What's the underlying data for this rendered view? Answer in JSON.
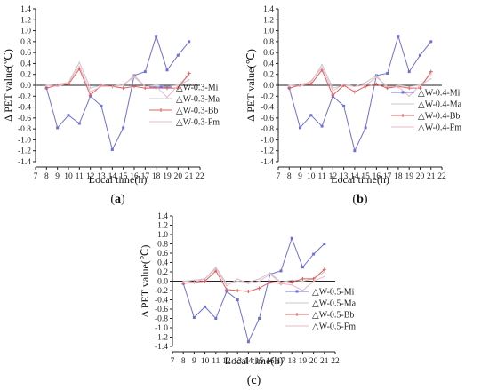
{
  "figure": {
    "panels": [
      "a",
      "b",
      "c"
    ]
  },
  "chart_data": [
    {
      "panel": "(a)",
      "panel_letter": "a",
      "type": "line",
      "xlabel": "Local time(h)",
      "ylabel": "Δ PET value(℃)",
      "xlim": [
        7,
        22
      ],
      "ylim": [
        -1.4,
        1.4
      ],
      "xticks": [
        "7",
        "8",
        "9",
        "10",
        "11",
        "12",
        "13",
        "14",
        "15",
        "16",
        "17",
        "18",
        "19",
        "20",
        "21",
        "22"
      ],
      "yticks": [
        "1.4",
        "1.2",
        "1.0",
        "0.8",
        "0.6",
        "0.4",
        "0.2",
        "0.0",
        "-0.2",
        "-0.4",
        "-0.6",
        "-0.8",
        "-1.0",
        "-1.2",
        "-1.4"
      ],
      "legend_position": "right",
      "series": [
        {
          "name": "△W-0.3-Mi",
          "color": "#6f6fd6",
          "marker": "square",
          "x": [
            8,
            9,
            10,
            11,
            12,
            13,
            14,
            15,
            16,
            17,
            18,
            19,
            20,
            21
          ],
          "values": [
            -0.05,
            -0.78,
            -0.55,
            -0.7,
            -0.2,
            -0.38,
            -1.18,
            -0.78,
            0.18,
            0.25,
            0.9,
            0.28,
            0.55,
            0.8
          ]
        },
        {
          "name": "△W-0.3-Ma",
          "color": "#c8c8c8",
          "marker": "none",
          "x": [
            8,
            9,
            10,
            11,
            12,
            13,
            14,
            15,
            16,
            17,
            18,
            19,
            20,
            21
          ],
          "values": [
            0.0,
            0.02,
            0.05,
            0.42,
            -0.05,
            0.0,
            -0.02,
            0.02,
            0.15,
            -0.02,
            0.0,
            -0.02,
            0.0,
            0.18
          ]
        },
        {
          "name": "△W-0.3-Bb",
          "color": "#e06060",
          "marker": "cross",
          "x": [
            8,
            9,
            10,
            11,
            12,
            13,
            14,
            15,
            16,
            17,
            18,
            19,
            20,
            21
          ],
          "values": [
            -0.05,
            0.0,
            0.02,
            0.3,
            -0.18,
            0.0,
            -0.02,
            -0.05,
            -0.02,
            -0.05,
            -0.05,
            -0.05,
            -0.05,
            0.22
          ]
        },
        {
          "name": "△W-0.3-Fm",
          "color": "#e8b8c8",
          "marker": "none",
          "x": [
            8,
            9,
            10,
            11,
            12,
            13,
            14,
            15,
            16,
            17,
            18,
            19,
            20,
            21
          ],
          "values": [
            0.0,
            -0.02,
            0.05,
            0.35,
            -0.12,
            -0.02,
            -0.02,
            0.0,
            0.18,
            -0.02,
            -0.02,
            -0.22,
            0.0,
            0.1
          ]
        }
      ]
    },
    {
      "panel": "(b)",
      "panel_letter": "b",
      "type": "line",
      "xlabel": "Local time(h)",
      "ylabel": "Δ PET value(℃)",
      "xlim": [
        7,
        22
      ],
      "ylim": [
        -1.4,
        1.4
      ],
      "xticks": [
        "7",
        "8",
        "9",
        "10",
        "11",
        "12",
        "13",
        "14",
        "15",
        "16",
        "17",
        "18",
        "19",
        "20",
        "21",
        "22"
      ],
      "yticks": [
        "1.4",
        "1.2",
        "1.0",
        "0.8",
        "0.6",
        "0.4",
        "0.2",
        "0.0",
        "-0.2",
        "-0.4",
        "-0.6",
        "-0.8",
        "-1.0",
        "-1.2",
        "-1.4"
      ],
      "legend_position": "right",
      "series": [
        {
          "name": "△W-0.4-Mi",
          "color": "#6f6fd6",
          "marker": "square",
          "x": [
            8,
            9,
            10,
            11,
            12,
            13,
            14,
            15,
            16,
            17,
            18,
            19,
            20,
            21
          ],
          "values": [
            -0.05,
            -0.78,
            -0.55,
            -0.75,
            -0.2,
            -0.38,
            -1.2,
            -0.78,
            0.18,
            0.22,
            0.9,
            0.25,
            0.55,
            0.8
          ]
        },
        {
          "name": "△W-0.4-Ma",
          "color": "#c8c8c8",
          "marker": "none",
          "x": [
            8,
            9,
            10,
            11,
            12,
            13,
            14,
            15,
            16,
            17,
            18,
            19,
            20,
            21
          ],
          "values": [
            0.0,
            0.02,
            0.05,
            0.38,
            -0.05,
            0.0,
            -0.02,
            0.05,
            0.18,
            -0.05,
            0.0,
            -0.02,
            0.0,
            0.2
          ]
        },
        {
          "name": "△W-0.4-Bb",
          "color": "#e06060",
          "marker": "cross",
          "x": [
            8,
            9,
            10,
            11,
            12,
            13,
            14,
            15,
            16,
            17,
            18,
            19,
            20,
            21
          ],
          "values": [
            -0.05,
            0.0,
            0.02,
            0.28,
            -0.18,
            0.0,
            -0.12,
            -0.02,
            0.02,
            -0.05,
            -0.02,
            -0.05,
            -0.05,
            0.25
          ]
        },
        {
          "name": "△W-0.4-Fm",
          "color": "#e8b8c8",
          "marker": "none",
          "x": [
            8,
            9,
            10,
            11,
            12,
            13,
            14,
            15,
            16,
            17,
            18,
            19,
            20,
            21
          ],
          "values": [
            0.0,
            -0.02,
            0.08,
            0.32,
            -0.1,
            0.02,
            -0.02,
            0.0,
            0.15,
            -0.02,
            -0.02,
            -0.2,
            0.0,
            0.12
          ]
        }
      ]
    },
    {
      "panel": "(c)",
      "panel_letter": "c",
      "type": "line",
      "xlabel": "Local time(h)",
      "ylabel": "Δ PET value(℃)",
      "xlim": [
        7,
        22
      ],
      "ylim": [
        -1.4,
        1.4
      ],
      "xticks": [
        "7",
        "8",
        "9",
        "10",
        "11",
        "12",
        "13",
        "14",
        "15",
        "16",
        "17",
        "18",
        "19",
        "20",
        "21",
        "22"
      ],
      "yticks": [
        "1.4",
        "1.2",
        "1.0",
        "0.8",
        "0.6",
        "0.4",
        "0.2",
        "0.0",
        "-0.2",
        "-0.4",
        "-0.6",
        "-0.8",
        "-1.0",
        "-1.2",
        "-1.4"
      ],
      "legend_position": "right",
      "series": [
        {
          "name": "△W-0.5-Mi",
          "color": "#6f6fd6",
          "marker": "square",
          "x": [
            8,
            9,
            10,
            11,
            12,
            13,
            14,
            15,
            16,
            17,
            18,
            19,
            20,
            21
          ],
          "values": [
            -0.05,
            -0.78,
            -0.55,
            -0.8,
            -0.22,
            -0.4,
            -1.3,
            -0.8,
            0.15,
            0.22,
            0.92,
            0.3,
            0.58,
            0.8
          ]
        },
        {
          "name": "△W-0.5-Ma",
          "color": "#c8c8c8",
          "marker": "none",
          "x": [
            8,
            9,
            10,
            11,
            12,
            13,
            14,
            15,
            16,
            17,
            18,
            19,
            20,
            21
          ],
          "values": [
            0.0,
            0.02,
            0.05,
            0.3,
            -0.05,
            0.0,
            -0.02,
            0.05,
            0.18,
            -0.02,
            0.02,
            0.0,
            0.05,
            0.2
          ]
        },
        {
          "name": "△W-0.5-Bb",
          "color": "#e06060",
          "marker": "cross",
          "x": [
            8,
            9,
            10,
            11,
            12,
            13,
            14,
            15,
            16,
            17,
            18,
            19,
            20,
            21
          ],
          "values": [
            -0.05,
            -0.02,
            0.0,
            0.22,
            -0.18,
            -0.2,
            -0.22,
            -0.15,
            -0.02,
            -0.05,
            -0.02,
            0.05,
            0.05,
            0.25
          ]
        },
        {
          "name": "△W-0.5-Fm",
          "color": "#e8b8c8",
          "marker": "none",
          "x": [
            8,
            9,
            10,
            11,
            12,
            13,
            14,
            15,
            16,
            17,
            18,
            19,
            20,
            21
          ],
          "values": [
            0.0,
            -0.02,
            0.05,
            0.28,
            -0.1,
            0.05,
            -0.05,
            0.0,
            0.15,
            -0.05,
            -0.08,
            -0.2,
            0.0,
            0.1
          ]
        }
      ]
    }
  ]
}
